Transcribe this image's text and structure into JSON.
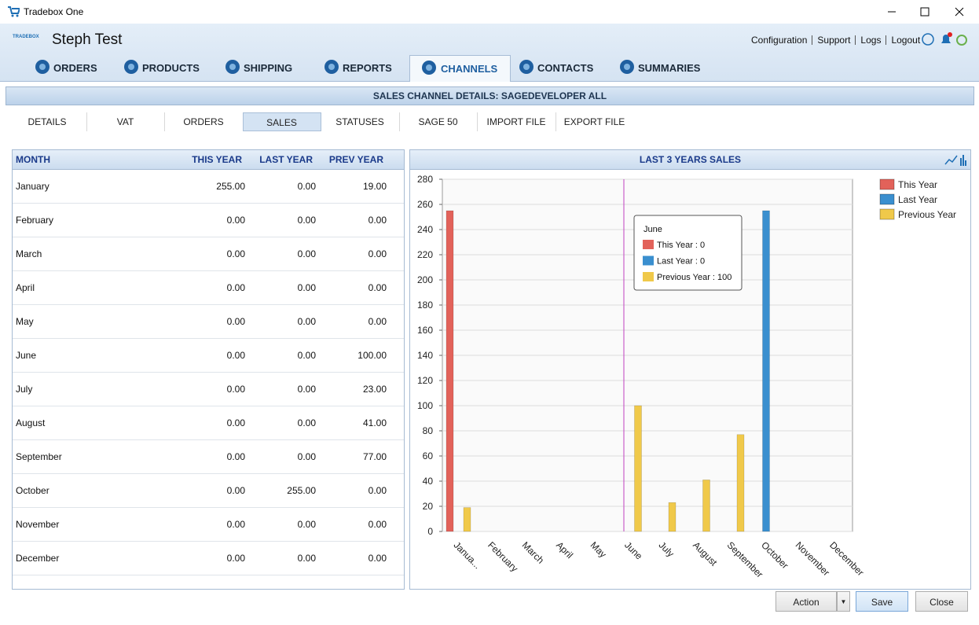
{
  "window": {
    "title": "Tradebox One"
  },
  "header": {
    "logo": "TRADEBOX",
    "user": "Steph Test",
    "links": [
      "Configuration",
      "Support",
      "Logs",
      "Logout"
    ]
  },
  "nav": [
    "ORDERS",
    "PRODUCTS",
    "SHIPPING",
    "REPORTS",
    "CHANNELS",
    "CONTACTS",
    "SUMMARIES"
  ],
  "section_title": "SALES CHANNEL DETAILS: SAGEDEVELOPER ALL",
  "subtabs": [
    "DETAILS",
    "VAT",
    "ORDERS",
    "SALES",
    "STATUSES",
    "SAGE 50",
    "IMPORT FILE",
    "EXPORT FILE"
  ],
  "table": {
    "columns": [
      "MONTH",
      "THIS YEAR",
      "LAST YEAR",
      "PREV YEAR"
    ],
    "rows": [
      [
        "January",
        "255.00",
        "0.00",
        "19.00"
      ],
      [
        "February",
        "0.00",
        "0.00",
        "0.00"
      ],
      [
        "March",
        "0.00",
        "0.00",
        "0.00"
      ],
      [
        "April",
        "0.00",
        "0.00",
        "0.00"
      ],
      [
        "May",
        "0.00",
        "0.00",
        "0.00"
      ],
      [
        "June",
        "0.00",
        "0.00",
        "100.00"
      ],
      [
        "July",
        "0.00",
        "0.00",
        "23.00"
      ],
      [
        "August",
        "0.00",
        "0.00",
        "41.00"
      ],
      [
        "September",
        "0.00",
        "0.00",
        "77.00"
      ],
      [
        "October",
        "0.00",
        "255.00",
        "0.00"
      ],
      [
        "November",
        "0.00",
        "0.00",
        "0.00"
      ],
      [
        "December",
        "0.00",
        "0.00",
        "0.00"
      ]
    ]
  },
  "chart_data": {
    "type": "bar",
    "title": "LAST 3 YEARS SALES",
    "categories": [
      "Janua...",
      "February",
      "March",
      "April",
      "May",
      "June",
      "July",
      "August",
      "September",
      "October",
      "November",
      "December"
    ],
    "series": [
      {
        "name": "This Year",
        "color": "#e2625a",
        "values": [
          255,
          0,
          0,
          0,
          0,
          0,
          0,
          0,
          0,
          0,
          0,
          0
        ]
      },
      {
        "name": "Last Year",
        "color": "#3a8fcf",
        "values": [
          0,
          0,
          0,
          0,
          0,
          0,
          0,
          0,
          0,
          255,
          0,
          0
        ]
      },
      {
        "name": "Previous Year",
        "color": "#f0c94a",
        "values": [
          19,
          0,
          0,
          0,
          0,
          100,
          23,
          41,
          77,
          0,
          0,
          0
        ]
      }
    ],
    "ylim": [
      0,
      280
    ],
    "yticks": [
      0,
      20,
      40,
      60,
      80,
      100,
      120,
      140,
      160,
      180,
      200,
      220,
      240,
      260,
      280
    ],
    "grid": true,
    "legend": "right",
    "tooltip": {
      "title": "June",
      "items": [
        "This Year : 0",
        "Last Year : 0",
        "Previous Year : 100"
      ]
    }
  },
  "buttons": [
    "Action",
    "Save",
    "Close"
  ]
}
